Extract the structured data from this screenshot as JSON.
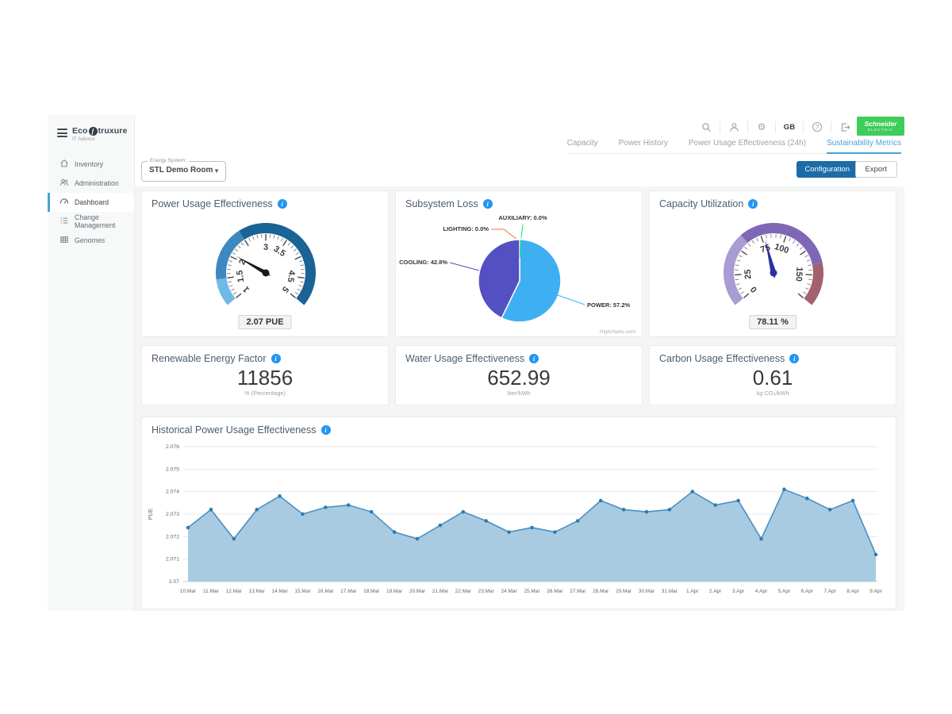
{
  "brand": {
    "eco": "Eco",
    "struxure": "truxure",
    "subtitle": "IT Advisor"
  },
  "sidebar": {
    "items": [
      {
        "label": "Inventory",
        "icon": "home-icon",
        "active": false
      },
      {
        "label": "Administration",
        "icon": "people-icon",
        "active": false
      },
      {
        "label": "Dashboard",
        "icon": "dashboard-icon",
        "active": true
      },
      {
        "label": "Change Management",
        "icon": "list-icon",
        "active": false
      },
      {
        "label": "Genomes",
        "icon": "grid-icon",
        "active": false
      }
    ]
  },
  "header": {
    "icons": [
      "search",
      "user",
      "settings",
      "help",
      "logout"
    ],
    "locale": "GB",
    "help_glyph": "?",
    "gear_glyph": "⚙",
    "brand_line1": "Schneider",
    "brand_line2": "Electric"
  },
  "tabs": [
    {
      "label": "Capacity",
      "active": false
    },
    {
      "label": "Power History",
      "active": false
    },
    {
      "label": "Power Usage Effectiveness (24h)",
      "active": false
    },
    {
      "label": "Sustainability Metrics",
      "active": true
    }
  ],
  "controls": {
    "energy_system_label": "Energy System:",
    "energy_system_value": "STL Demo Room",
    "caret_glyph": "▼",
    "configuration": "Configuration",
    "export": "Export"
  },
  "stat_cards": [
    {
      "title": "Renewable Energy Factor",
      "value": "11856",
      "unit": "% (Percentage)"
    },
    {
      "title": "Water Usage Effectiveness",
      "value": "652.99",
      "unit": "liter/kWh"
    },
    {
      "title": "Carbon Usage Effectiveness",
      "value": "0.61",
      "unit": "kg CO₂/kWh"
    }
  ],
  "colors": {
    "accent_blue": "#1b6ca8",
    "tab_active_blue": "#49a3d8",
    "schneider_green": "#3dcd58",
    "info_blue": "#2196f3"
  },
  "chart_data": [
    {
      "id": "pue_gauge",
      "type": "gauge",
      "title": "Power Usage Effectiveness",
      "min": 1,
      "max": 5,
      "value": 2.07,
      "value_label": "2.07 PUE",
      "tick_interval": 0.5,
      "minor_tick": 0.1,
      "needle_color": "#1b1b1b",
      "needle_width": 2.6,
      "labels": [
        {
          "v": 1,
          "text": "1"
        },
        {
          "v": 1.5,
          "text": "1.5"
        },
        {
          "v": 2,
          "text": "2"
        },
        {
          "v": 3,
          "text": "3"
        },
        {
          "v": 3.5,
          "text": "3.5"
        },
        {
          "v": 4.5,
          "text": "4.5"
        },
        {
          "v": 5,
          "text": "5"
        }
      ],
      "bands": [
        {
          "from": 1,
          "to": 1.5,
          "color": "#6fb9e6"
        },
        {
          "from": 1.5,
          "to": 2.5,
          "color": "#3d88c0"
        },
        {
          "from": 2.5,
          "to": 5,
          "color": "#1b6295"
        }
      ]
    },
    {
      "id": "subsystem_loss",
      "type": "pie",
      "title": "Subsystem Loss",
      "slices": [
        {
          "name": "POWER",
          "value": 57.2,
          "color": "#3eb0f2"
        },
        {
          "name": "COOLING",
          "value": 42.8,
          "color": "#544fc2"
        },
        {
          "name": "LIGHTING",
          "value": 0.0,
          "color": "#fe6a35"
        },
        {
          "name": "AUXILIARY",
          "value": 0.0,
          "color": "#00e272"
        }
      ],
      "credit": "Highcharts.com"
    },
    {
      "id": "capacity_gauge",
      "type": "gauge",
      "title": "Capacity Utilization",
      "min": 0,
      "max": 175,
      "value": 78.11,
      "value_label": "78.11 %",
      "tick_interval": 25,
      "minor_tick": 5,
      "needle_color": "#27339b",
      "needle_width": 3.4,
      "labels": [
        {
          "v": 0,
          "text": "0"
        },
        {
          "v": 25,
          "text": "25"
        },
        {
          "v": 75,
          "text": "75"
        },
        {
          "v": 100,
          "text": "100"
        },
        {
          "v": 150,
          "text": "150"
        }
      ],
      "bands": [
        {
          "from": 0,
          "to": 60,
          "color": "#a99cd2"
        },
        {
          "from": 60,
          "to": 140,
          "color": "#7e68b5"
        },
        {
          "from": 140,
          "to": 175,
          "color": "#a2616e"
        }
      ]
    },
    {
      "id": "historical_pue",
      "type": "area",
      "title": "Historical Power Usage Effectiveness",
      "ylabel": "PUE",
      "ylim": [
        2.07,
        2.076
      ],
      "yticks": [
        2.07,
        2.071,
        2.072,
        2.073,
        2.074,
        2.075,
        2.076
      ],
      "categories": [
        "10.Mar",
        "11.Mar",
        "12.Mar",
        "13.Mar",
        "14.Mar",
        "15.Mar",
        "16.Mar",
        "17.Mar",
        "18.Mar",
        "19.Mar",
        "20.Mar",
        "21.Mar",
        "22.Mar",
        "23.Mar",
        "24.Mar",
        "25.Mar",
        "26.Mar",
        "27.Mar",
        "28.Mar",
        "29.Mar",
        "30.Mar",
        "31.Mar",
        "1.Apr",
        "2.Apr",
        "3.Apr",
        "4.Apr",
        "5.Apr",
        "6.Apr",
        "7.Apr",
        "8.Apr",
        "9.Apr"
      ],
      "values": [
        2.0724,
        2.0732,
        2.0719,
        2.0732,
        2.0738,
        2.073,
        2.0733,
        2.0734,
        2.0731,
        2.0722,
        2.0719,
        2.0725,
        2.0731,
        2.0727,
        2.0722,
        2.0724,
        2.0722,
        2.0727,
        2.0736,
        2.0732,
        2.0731,
        2.0732,
        2.074,
        2.0734,
        2.0736,
        2.0719,
        2.0741,
        2.0737,
        2.0732,
        2.0736,
        2.0712
      ],
      "line_color": "#4a90c2",
      "fill_color": "#a8cbe2",
      "marker_color": "#2e7cb3",
      "grid_color": "#e8e8e8",
      "axis_color": "#c9c9c9"
    }
  ]
}
